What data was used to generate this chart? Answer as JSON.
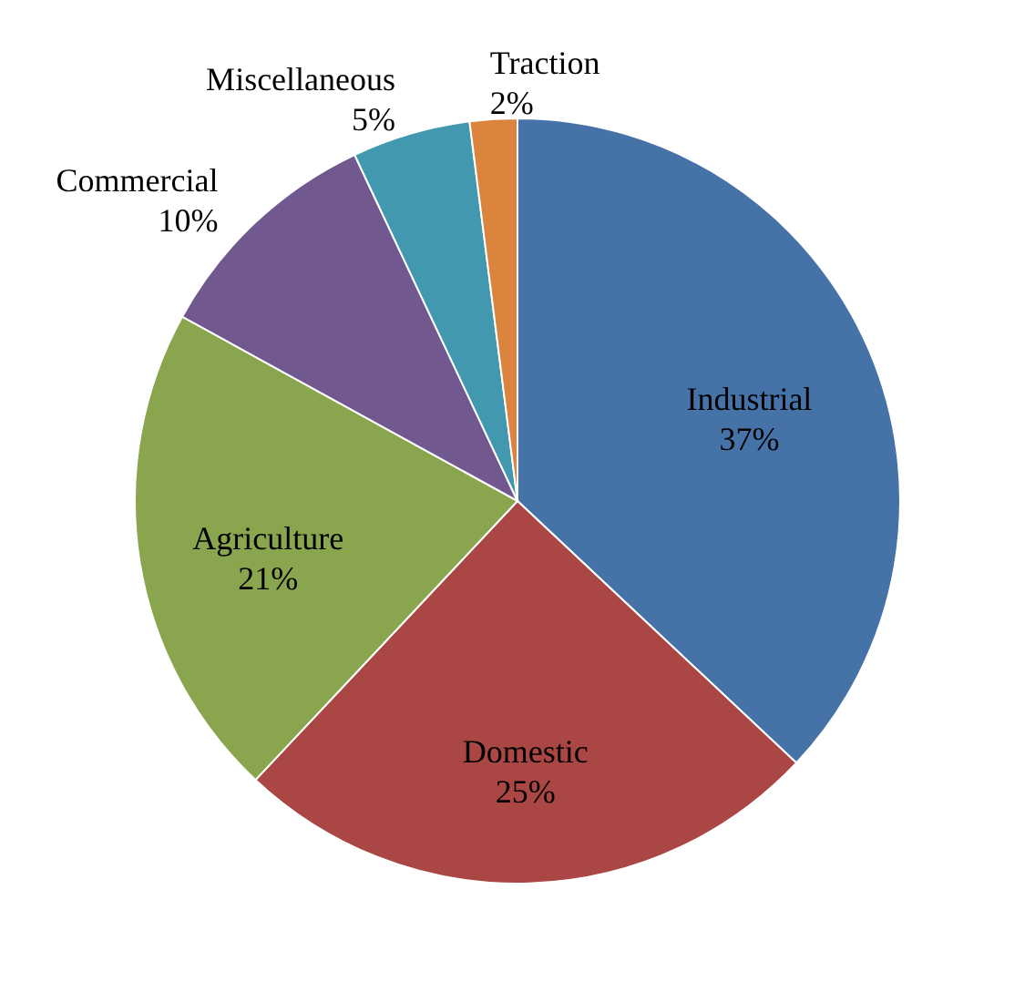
{
  "chart_data": {
    "type": "pie",
    "categories": [
      "Industrial",
      "Domestic",
      "Agriculture",
      "Commercial",
      "Miscellaneous",
      "Traction"
    ],
    "values": [
      37,
      25,
      21,
      10,
      5,
      2
    ],
    "value_labels": [
      "37%",
      "25%",
      "21%",
      "10%",
      "5%",
      "2%"
    ],
    "colors": [
      "#4572a7",
      "#aa4643",
      "#89a54e",
      "#71588f",
      "#4198af",
      "#db843d"
    ]
  }
}
